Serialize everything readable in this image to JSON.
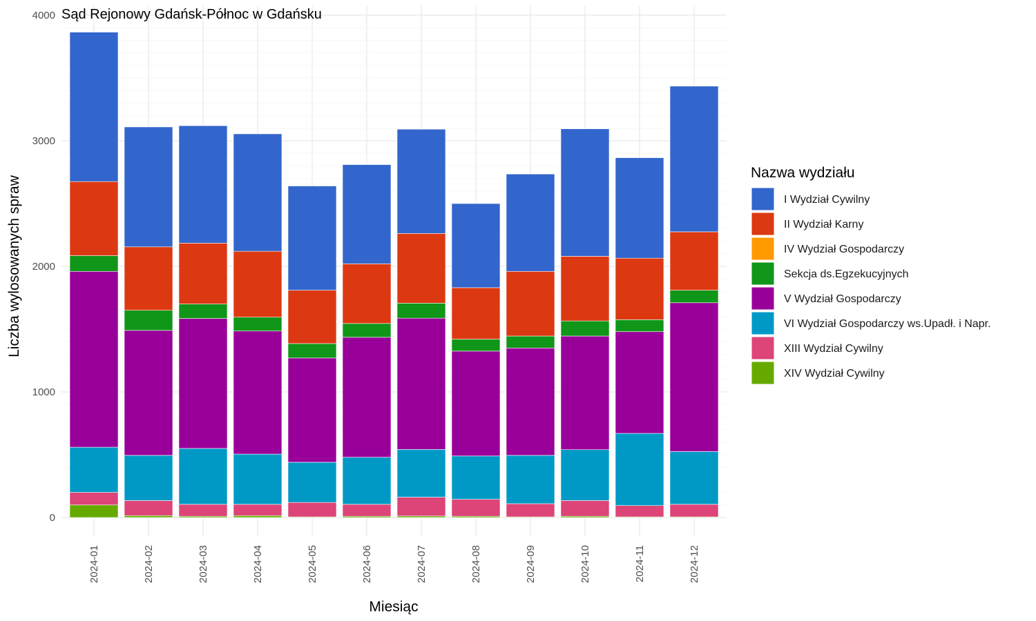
{
  "chart_data": {
    "type": "bar",
    "stacked": true,
    "title": "Sąd Rejonowy Gdańsk-Północ w Gdańsku",
    "xlabel": "Miesiąc",
    "ylabel": "Liczba wylosowanych spraw",
    "ylim": [
      0,
      4000
    ],
    "yticks": [
      0,
      1000,
      2000,
      3000,
      4000
    ],
    "grid": true,
    "legend_title": "Nazwa wydziału",
    "legend_position": "right",
    "categories": [
      "2024-01",
      "2024-02",
      "2024-03",
      "2024-04",
      "2024-05",
      "2024-06",
      "2024-07",
      "2024-08",
      "2024-09",
      "2024-10",
      "2024-11",
      "2024-12"
    ],
    "series": [
      {
        "name": "XIV Wydział Cywilny",
        "color": "#66AA00",
        "values": [
          100,
          15,
          10,
          15,
          5,
          10,
          12,
          10,
          5,
          10,
          5,
          5
        ]
      },
      {
        "name": "XIII Wydział Cywilny",
        "color": "#DD4477",
        "values": [
          100,
          120,
          95,
          90,
          115,
          95,
          150,
          135,
          105,
          125,
          90,
          100
        ]
      },
      {
        "name": "VI Wydział Gospodarczy ws.Upadł. i Napr.",
        "color": "#0099C6",
        "values": [
          360,
          360,
          445,
          400,
          320,
          375,
          380,
          345,
          385,
          405,
          575,
          420
        ]
      },
      {
        "name": "V Wydział Gospodarczy",
        "color": "#990099",
        "values": [
          1400,
          995,
          1035,
          980,
          830,
          955,
          1045,
          835,
          855,
          905,
          810,
          1185
        ]
      },
      {
        "name": "Sekcja ds.Egzekucyjnych",
        "color": "#109618",
        "values": [
          125,
          160,
          115,
          110,
          115,
          110,
          120,
          95,
          95,
          120,
          95,
          100
        ]
      },
      {
        "name": "IV Wydział Gospodarczy",
        "color": "#FF9900",
        "values": [
          0,
          0,
          0,
          0,
          0,
          0,
          0,
          0,
          0,
          0,
          0,
          0
        ]
      },
      {
        "name": "II Wydział Karny",
        "color": "#DC3912",
        "values": [
          590,
          505,
          485,
          525,
          425,
          475,
          555,
          410,
          515,
          515,
          490,
          465
        ]
      },
      {
        "name": "I Wydział Cywilny",
        "color": "#3366CC",
        "values": [
          1190,
          955,
          935,
          935,
          830,
          790,
          830,
          670,
          775,
          1015,
          800,
          1160
        ]
      }
    ],
    "legend_order": [
      "I Wydział Cywilny",
      "II Wydział Karny",
      "IV Wydział Gospodarczy",
      "Sekcja ds.Egzekucyjnych",
      "V Wydział Gospodarczy",
      "VI Wydział Gospodarczy ws.Upadł. i Napr.",
      "XIII Wydział Cywilny",
      "XIV Wydział Cywilny"
    ]
  }
}
